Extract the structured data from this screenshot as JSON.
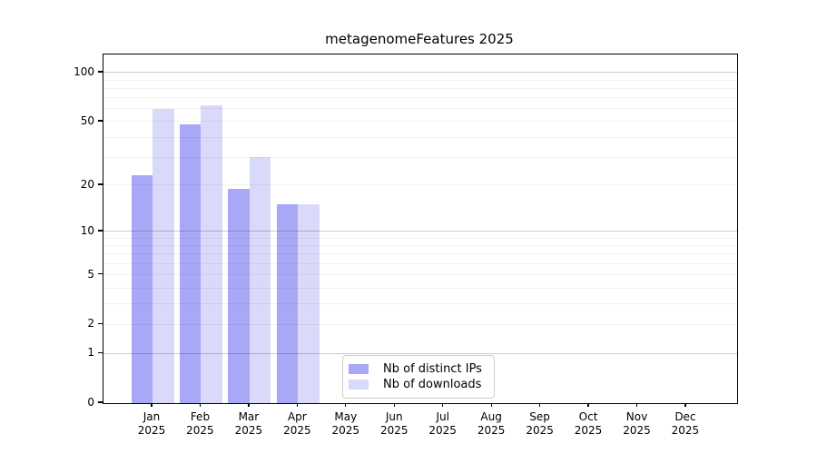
{
  "title": "metagenomeFeatures 2025",
  "chart_data": {
    "type": "bar",
    "title": "metagenomeFeatures 2025",
    "categories": [
      "Jan",
      "Feb",
      "Mar",
      "Apr",
      "May",
      "Jun",
      "Jul",
      "Aug",
      "Sep",
      "Oct",
      "Nov",
      "Dec"
    ],
    "category_sub_label": "2025",
    "series": [
      {
        "name": "Nb of distinct IPs",
        "color": "#a8a8f7",
        "values": [
          23,
          48,
          19,
          15,
          null,
          null,
          null,
          null,
          null,
          null,
          null,
          null
        ]
      },
      {
        "name": "Nb of downloads",
        "color": "#d9d9f9",
        "values": [
          60,
          63,
          30,
          15,
          null,
          null,
          null,
          null,
          null,
          null,
          null,
          null
        ]
      }
    ],
    "xlabel": "",
    "ylabel": "",
    "y_scale": "log10(1+x)",
    "ylim": [
      0,
      129
    ],
    "y_tick_labels": [
      100,
      50,
      20,
      10,
      5,
      2,
      1,
      0
    ],
    "y_major_gridlines": [
      1,
      10,
      100
    ],
    "y_minor_gridlines": [
      2,
      3,
      4,
      5,
      6,
      7,
      8,
      9,
      20,
      30,
      40,
      50,
      60,
      70,
      80,
      90
    ],
    "grid": "horizontal",
    "legend_position": "lower-center"
  },
  "legend": {
    "items": [
      "Nb of distinct IPs",
      "Nb of downloads"
    ]
  },
  "colors": {
    "spine": "#000000",
    "text": "#000000",
    "grid_minor": "rgba(0,0,0,0.055)",
    "grid_major": "rgba(0,0,0,0.20)",
    "background": "#ffffff"
  }
}
